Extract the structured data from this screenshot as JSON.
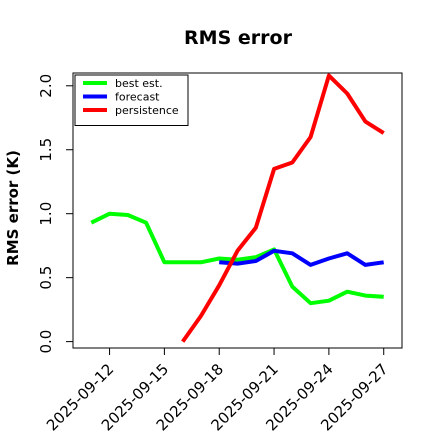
{
  "chart_data": {
    "type": "line",
    "title": "RMS error",
    "xlabel": "",
    "ylabel": "RMS error (K)",
    "ylim": [
      -0.05,
      2.1
    ],
    "yticks": [
      0.0,
      0.5,
      1.0,
      1.5,
      2.0
    ],
    "ytick_labels": [
      "0.0",
      "0.5",
      "1.0",
      "1.5",
      "2.0"
    ],
    "xlim": [
      "2025-09-10",
      "2025-09-28"
    ],
    "xticks": [
      "2025-09-12",
      "2025-09-15",
      "2025-09-18",
      "2025-09-21",
      "2025-09-24",
      "2025-09-27"
    ],
    "xtick_labels": [
      {
        "text": "2025-09-12",
        "color": "#000000"
      },
      {
        "text": "2025-09-15",
        "color": "#000000"
      },
      {
        "text": "2025-09-18",
        "color": "#228B22"
      },
      {
        "text": "2025-09-21",
        "color": "#000000"
      },
      {
        "text": "2025-09-24",
        "color": "#000000"
      },
      {
        "text": "2025-09-27",
        "color": "#000000"
      }
    ],
    "grid": false,
    "legend_position": "top-left",
    "series": [
      {
        "name": "best est.",
        "color": "#00ff00",
        "x": [
          "2025-09-11",
          "2025-09-12",
          "2025-09-13",
          "2025-09-14",
          "2025-09-15",
          "2025-09-16",
          "2025-09-17",
          "2025-09-18",
          "2025-09-19",
          "2025-09-20",
          "2025-09-21",
          "2025-09-22",
          "2025-09-23",
          "2025-09-24",
          "2025-09-25",
          "2025-09-26",
          "2025-09-27"
        ],
        "values": [
          0.93,
          1.0,
          0.99,
          0.93,
          0.62,
          0.62,
          0.62,
          0.65,
          0.64,
          0.66,
          0.72,
          0.43,
          0.3,
          0.32,
          0.39,
          0.36,
          0.35
        ]
      },
      {
        "name": "forecast",
        "color": "#0000ff",
        "x": [
          "2025-09-18",
          "2025-09-19",
          "2025-09-20",
          "2025-09-21",
          "2025-09-22",
          "2025-09-23",
          "2025-09-24",
          "2025-09-25",
          "2025-09-26",
          "2025-09-27"
        ],
        "values": [
          0.62,
          0.61,
          0.63,
          0.71,
          0.69,
          0.6,
          0.65,
          0.69,
          0.6,
          0.62
        ]
      },
      {
        "name": "persistence",
        "color": "#ff0000",
        "x": [
          "2025-09-16",
          "2025-09-17",
          "2025-09-18",
          "2025-09-19",
          "2025-09-20",
          "2025-09-21",
          "2025-09-22",
          "2025-09-23",
          "2025-09-24",
          "2025-09-25",
          "2025-09-26",
          "2025-09-27"
        ],
        "values": [
          0.0,
          0.2,
          0.44,
          0.71,
          0.89,
          1.35,
          1.4,
          1.6,
          2.08,
          1.94,
          1.72,
          1.63
        ]
      }
    ]
  }
}
